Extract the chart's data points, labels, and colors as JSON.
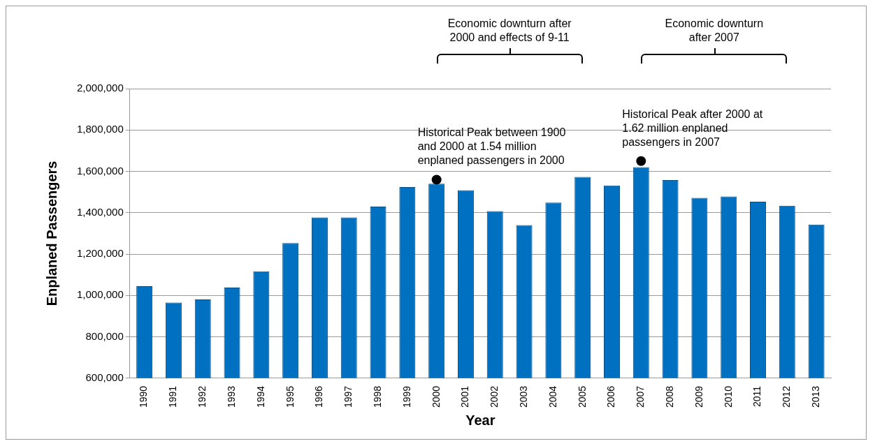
{
  "chart_data": {
    "type": "bar",
    "xlabel": "Year",
    "ylabel": "Enplaned Passengers",
    "categories": [
      "1990",
      "1991",
      "1992",
      "1993",
      "1994",
      "1995",
      "1996",
      "1997",
      "1998",
      "1999",
      "2000",
      "2001",
      "2002",
      "2003",
      "2004",
      "2005",
      "2006",
      "2007",
      "2008",
      "2009",
      "2010",
      "2011",
      "2012",
      "2013"
    ],
    "values": [
      1045000,
      966000,
      981000,
      1038000,
      1117000,
      1253000,
      1377000,
      1377000,
      1430000,
      1524000,
      1540000,
      1509000,
      1408000,
      1340000,
      1449000,
      1573000,
      1532000,
      1620000,
      1558000,
      1472000,
      1479000,
      1453000,
      1434000,
      1343000
    ],
    "color": "#0070c0",
    "ylim": [
      600000,
      2000000
    ],
    "yticks": [
      {
        "value": 600000,
        "label": "600,000"
      },
      {
        "value": 800000,
        "label": "800,000"
      },
      {
        "value": 1000000,
        "label": "1,000,000"
      },
      {
        "value": 1200000,
        "label": "1,200,000"
      },
      {
        "value": 1400000,
        "label": "1,400,000"
      },
      {
        "value": 1600000,
        "label": "1,600,000"
      },
      {
        "value": 1800000,
        "label": "1,800,000"
      },
      {
        "value": 2000000,
        "label": "2,000,000"
      }
    ],
    "grid": "y",
    "legend": false,
    "annotations": [
      "Economic downturn after 2000 and effects of 9-11",
      "Economic downturn after 2007",
      {
        "text": "Historical Peak between 1900 and 2000 at 1.54 million enplaned passengers in 2000",
        "x": "2000",
        "y": 1560000
      },
      {
        "text": "Historical Peak after 2000 at 1.62 million enplaned passengers in 2007",
        "x": "2007",
        "y": 1650000
      }
    ]
  }
}
